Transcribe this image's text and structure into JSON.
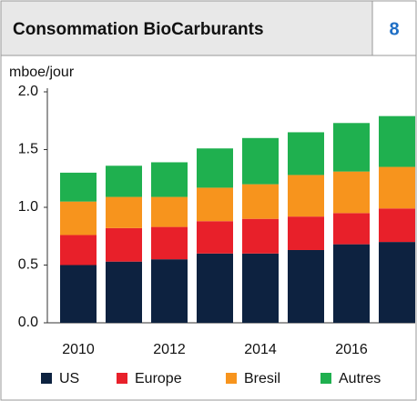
{
  "chart_data": {
    "type": "stacked_bar",
    "title": "Consommation BioCarburants",
    "badge": "8",
    "y_label": "mboe/jour",
    "categories": [
      "2010",
      null,
      "2012",
      null,
      "2014",
      null,
      "2016",
      null
    ],
    "series": [
      {
        "name": "US",
        "color": "#0d2240",
        "values": [
          0.5,
          0.53,
          0.55,
          0.6,
          0.6,
          0.63,
          0.68,
          0.7
        ]
      },
      {
        "name": "Europe",
        "color": "#e8202a",
        "values": [
          0.26,
          0.29,
          0.28,
          0.28,
          0.3,
          0.29,
          0.27,
          0.29
        ]
      },
      {
        "name": "Bresil",
        "color": "#f7941d",
        "values": [
          0.29,
          0.27,
          0.26,
          0.29,
          0.3,
          0.36,
          0.36,
          0.36
        ]
      },
      {
        "name": "Autres",
        "color": "#1fb04f",
        "values": [
          0.25,
          0.27,
          0.3,
          0.34,
          0.4,
          0.37,
          0.42,
          0.44
        ]
      }
    ],
    "ylim": [
      0,
      2
    ],
    "yticks": [
      {
        "value": 0,
        "label": "0.0"
      },
      0.5,
      {
        "value": 1,
        "label": "1.0"
      },
      1.5,
      {
        "value": 2,
        "label": "2.0"
      }
    ],
    "grid": false,
    "legend": "bottom"
  }
}
